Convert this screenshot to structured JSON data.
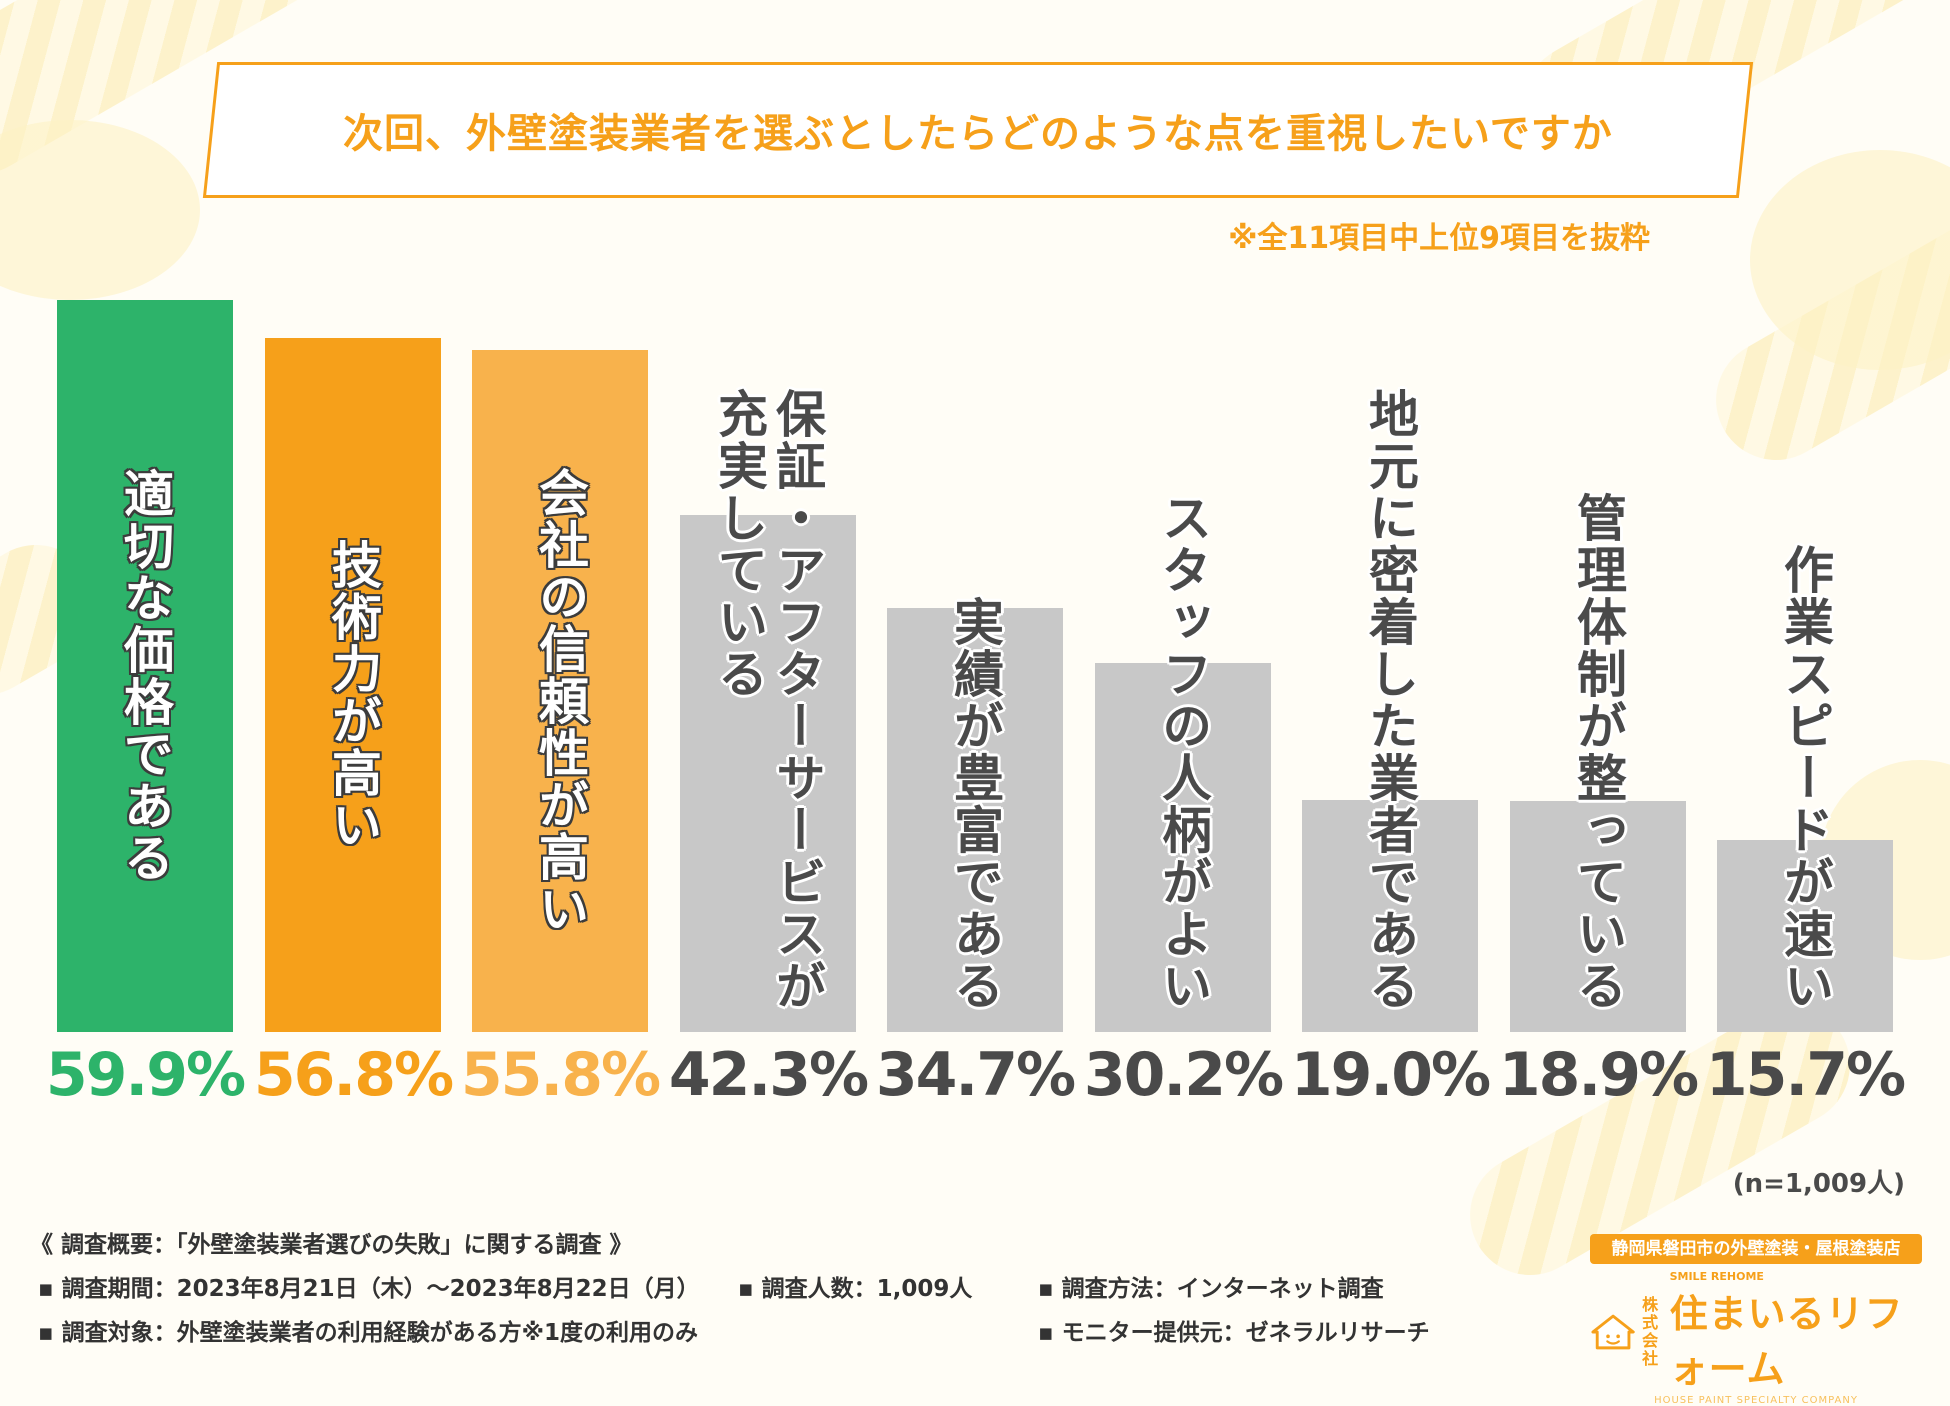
{
  "title": "次回、外壁塗装業者を選ぶとしたらどのような点を重視したいですか",
  "subnote": "※全11項目中上位9項目を抜粋",
  "chart_data": {
    "type": "bar",
    "title": "次回、外壁塗装業者を選ぶとしたらどのような点を重視したいですか",
    "categories": [
      "適切な価格である",
      "技術力が高い",
      "会社の信頼性が高い",
      "保証・アフターサービスが充実している",
      "実績が豊富である",
      "スタッフの人柄がよい",
      "地元に密着した業者である",
      "管理体制が整っている",
      "作業スピードが速い"
    ],
    "label_lines": [
      [
        "適切な価格である"
      ],
      [
        "技術力が高い"
      ],
      [
        "会社の信頼性が高い"
      ],
      [
        "保証・アフターサービスが",
        "充実している"
      ],
      [
        "実績が豊富である"
      ],
      [
        "スタッフの人柄がよい"
      ],
      [
        "地元に密着した業者である"
      ],
      [
        "管理体制が整っている"
      ],
      [
        "作業スピードが速い"
      ]
    ],
    "values": [
      59.9,
      56.8,
      55.8,
      42.3,
      34.7,
      30.2,
      19.0,
      18.9,
      15.7
    ],
    "value_labels": [
      "59.9%",
      "56.8%",
      "55.8%",
      "42.3%",
      "34.7%",
      "30.2%",
      "19.0%",
      "18.9%",
      "15.7%"
    ],
    "unit": "%",
    "ylim": [
      0,
      59.9
    ],
    "xlabel": "",
    "ylabel": ""
  },
  "colors": {
    "bars": [
      "#2db36a",
      "#f6a01a",
      "#f8b24c",
      "#c8c8c8",
      "#c8c8c8",
      "#c8c8c8",
      "#c8c8c8",
      "#c8c8c8",
      "#c8c8c8"
    ],
    "values": [
      "#2db36a",
      "#f6a01a",
      "#f8b24c",
      "#4a4a4a",
      "#4a4a4a",
      "#4a4a4a",
      "#4a4a4a",
      "#4a4a4a",
      "#4a4a4a"
    ],
    "accent": "#f6a01a"
  },
  "n_note": "(n=1,009人)",
  "footer": {
    "title": "《 調査概要：「外壁塗装業者選びの失敗」に関する調査 》",
    "period": "調査期間：2023年8月21日（木）〜2023年8月22日（月）",
    "count": "調査人数：1,009人",
    "method": "調査方法：インターネット調査",
    "target": "調査対象：外壁塗装業者の利用経験がある方※1度の利用のみ",
    "provider": "モニター提供元：ゼネラルリサーチ"
  },
  "logo": {
    "banner": "静岡県磐田市の外壁塗装・屋根塗装店",
    "kabushiki": "株式会社",
    "name": "住まいるリフォーム",
    "sub": "SMILE REHOME",
    "tagline": "HOUSE PAINT SPECIALTY COMPANY"
  }
}
